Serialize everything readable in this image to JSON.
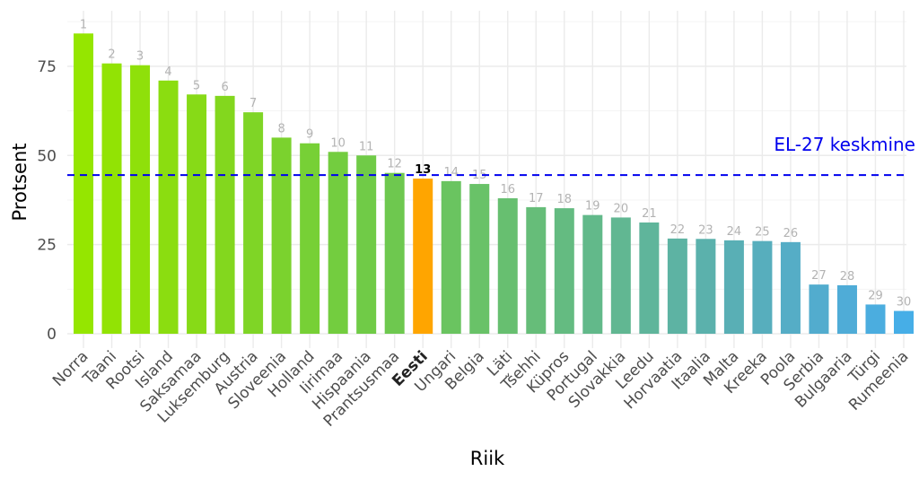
{
  "chart_data": {
    "type": "bar",
    "title": "",
    "xlabel": "Riik",
    "ylabel": "Protsent",
    "ylim": [
      0,
      88
    ],
    "yticks": [
      0,
      25,
      50,
      75
    ],
    "grid": true,
    "highlight": "Eesti",
    "categories": [
      "Norra",
      "Taani",
      "Rootsi",
      "Island",
      "Saksamaa",
      "Luksemburg",
      "Austria",
      "Sloveenia",
      "Holland",
      "Iirimaa",
      "Hispaania",
      "Prantsusmaa",
      "Eesti",
      "Ungari",
      "Belgia",
      "Läti",
      "Tšehhi",
      "Küpros",
      "Portugal",
      "Slovakkia",
      "Leedu",
      "Horvaatia",
      "Itaalia",
      "Malta",
      "Kreeka",
      "Poola",
      "Serbia",
      "Bulgaaria",
      "Türgi",
      "Rumeenia"
    ],
    "ranks": [
      "1",
      "2",
      "3",
      "4",
      "5",
      "6",
      "7",
      "8",
      "9",
      "10",
      "11",
      "12",
      "13",
      "14",
      "15",
      "16",
      "17",
      "18",
      "19",
      "20",
      "21",
      "22",
      "23",
      "24",
      "25",
      "26",
      "27",
      "28",
      "29",
      "30"
    ],
    "values": [
      84.2,
      75.8,
      75.3,
      71.0,
      67.1,
      66.7,
      62.1,
      55.0,
      53.4,
      51.0,
      50.0,
      45.1,
      43.5,
      42.8,
      42.0,
      38.0,
      35.5,
      35.2,
      33.3,
      32.6,
      31.2,
      26.7,
      26.6,
      26.2,
      26.0,
      25.7,
      13.8,
      13.6,
      8.2,
      6.4
    ],
    "colors": [
      "#95e600",
      "#92e304",
      "#8fe00a",
      "#8bdd10",
      "#87da17",
      "#83d71e",
      "#7fd526",
      "#7bd22e",
      "#77d036",
      "#73cd3f",
      "#70cb47",
      "#6ec84f",
      "#ffa500",
      "#6ac460",
      "#69c268",
      "#67bf70",
      "#66bd79",
      "#64bb81",
      "#62b98a",
      "#61b792",
      "#5fb59b",
      "#5db3a3",
      "#5bb1ac",
      "#59afb5",
      "#57aebd",
      "#55adc6",
      "#52acce",
      "#4facd7",
      "#4baddf",
      "#46aee7"
    ],
    "reference_line": {
      "label": "EL-27 keskmine",
      "value": 44.5,
      "color": "#0000ee"
    }
  }
}
